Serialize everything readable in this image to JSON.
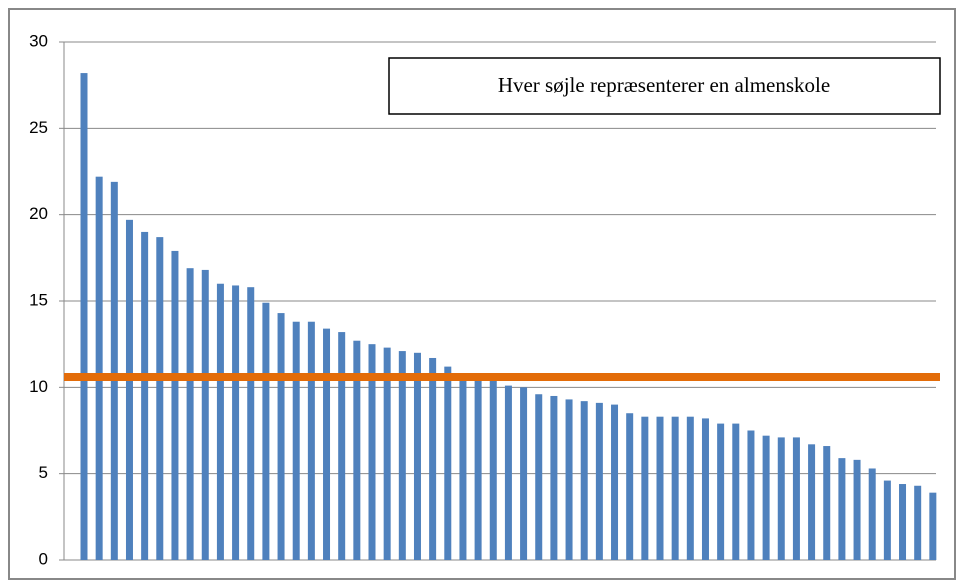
{
  "chart_data": {
    "type": "bar",
    "annotation": "Hver søjle repræsenterer en almenskole",
    "values": [
      28.2,
      22.2,
      21.9,
      19.7,
      19.0,
      18.7,
      17.9,
      16.9,
      16.8,
      16.0,
      15.9,
      15.8,
      14.9,
      14.3,
      13.8,
      13.8,
      13.4,
      13.2,
      12.7,
      12.5,
      12.3,
      12.1,
      12.0,
      11.7,
      11.2,
      10.7,
      10.6,
      10.5,
      10.1,
      10.0,
      9.6,
      9.5,
      9.3,
      9.2,
      9.1,
      9.0,
      8.5,
      8.3,
      8.3,
      8.3,
      8.3,
      8.2,
      7.9,
      7.9,
      7.5,
      7.2,
      7.1,
      7.1,
      6.7,
      6.6,
      5.9,
      5.8,
      5.3,
      4.6,
      4.4,
      4.3,
      3.9
    ],
    "color": "#4f81bd",
    "reference_line": {
      "value": 10.6,
      "color": "#e36c09"
    },
    "ylim": [
      0,
      30
    ],
    "yticks": [
      0,
      5,
      10,
      15,
      20,
      25,
      30
    ],
    "grid": true
  }
}
